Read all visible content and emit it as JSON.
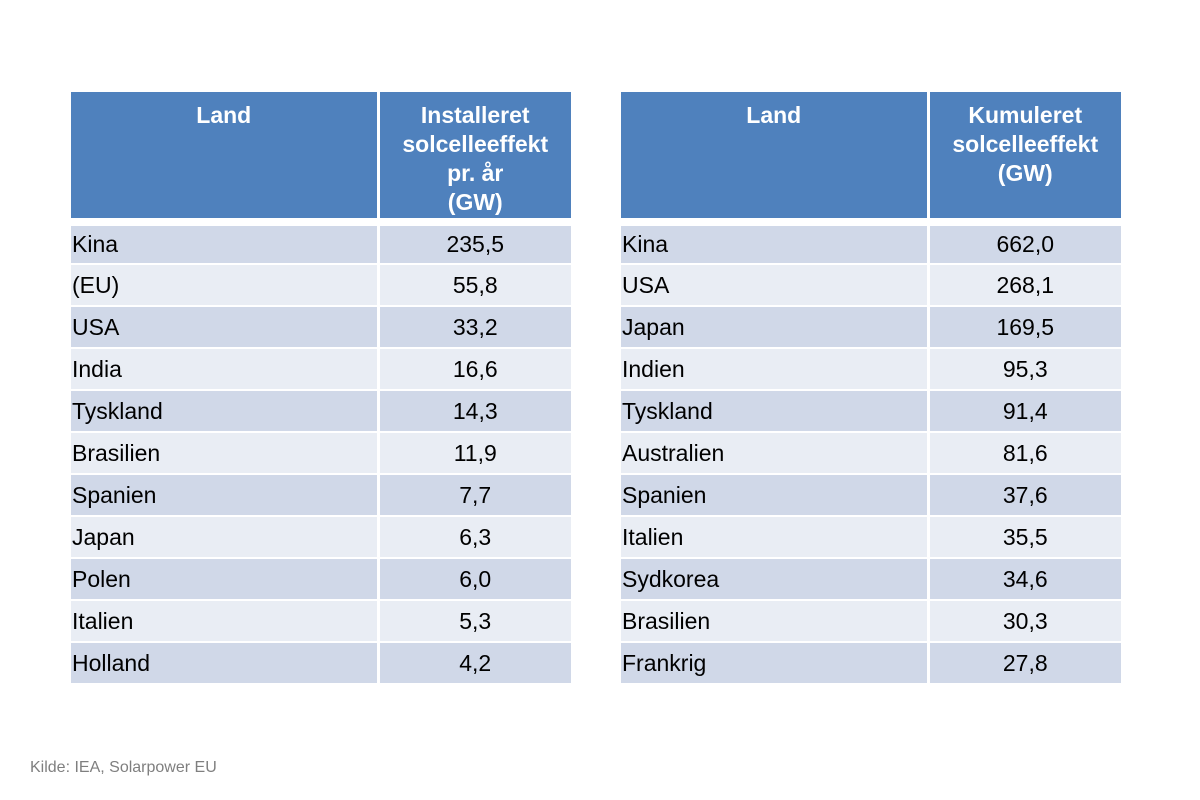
{
  "chart_data": [
    {
      "type": "table",
      "columns": [
        [
          "Land"
        ],
        [
          "Installeret",
          "solcelleeffekt",
          "pr. år",
          "(GW)"
        ]
      ],
      "rows": [
        {
          "country": "Kina",
          "value": "235,5"
        },
        {
          "country": "(EU)",
          "value": "55,8"
        },
        {
          "country": "USA",
          "value": "33,2"
        },
        {
          "country": "India",
          "value": "16,6"
        },
        {
          "country": "Tyskland",
          "value": "14,3"
        },
        {
          "country": "Brasilien",
          "value": "11,9"
        },
        {
          "country": "Spanien",
          "value": "7,7"
        },
        {
          "country": "Japan",
          "value": "6,3"
        },
        {
          "country": "Polen",
          "value": "6,0"
        },
        {
          "country": "Italien",
          "value": "5,3"
        },
        {
          "country": "Holland",
          "value": "4,2"
        }
      ]
    },
    {
      "type": "table",
      "columns": [
        [
          "Land"
        ],
        [
          "Kumuleret",
          "solcelleeffekt",
          "(GW)"
        ]
      ],
      "rows": [
        {
          "country": "Kina",
          "value": "662,0"
        },
        {
          "country": "USA",
          "value": "268,1"
        },
        {
          "country": "Japan",
          "value": "169,5"
        },
        {
          "country": "Indien",
          "value": "95,3"
        },
        {
          "country": "Tyskland",
          "value": "91,4"
        },
        {
          "country": "Australien",
          "value": "81,6"
        },
        {
          "country": "Spanien",
          "value": "37,6"
        },
        {
          "country": "Italien",
          "value": "35,5"
        },
        {
          "country": "Sydkorea",
          "value": "34,6"
        },
        {
          "country": "Brasilien",
          "value": "30,3"
        },
        {
          "country": "Frankrig",
          "value": "27,8"
        }
      ]
    }
  ],
  "source": "Kilde: IEA, Solarpower EU",
  "colors": {
    "header_bg": "#4f81bd",
    "row_odd": "#d0d8e8",
    "row_even": "#e9edf4",
    "source_text": "#7f7f7f"
  }
}
